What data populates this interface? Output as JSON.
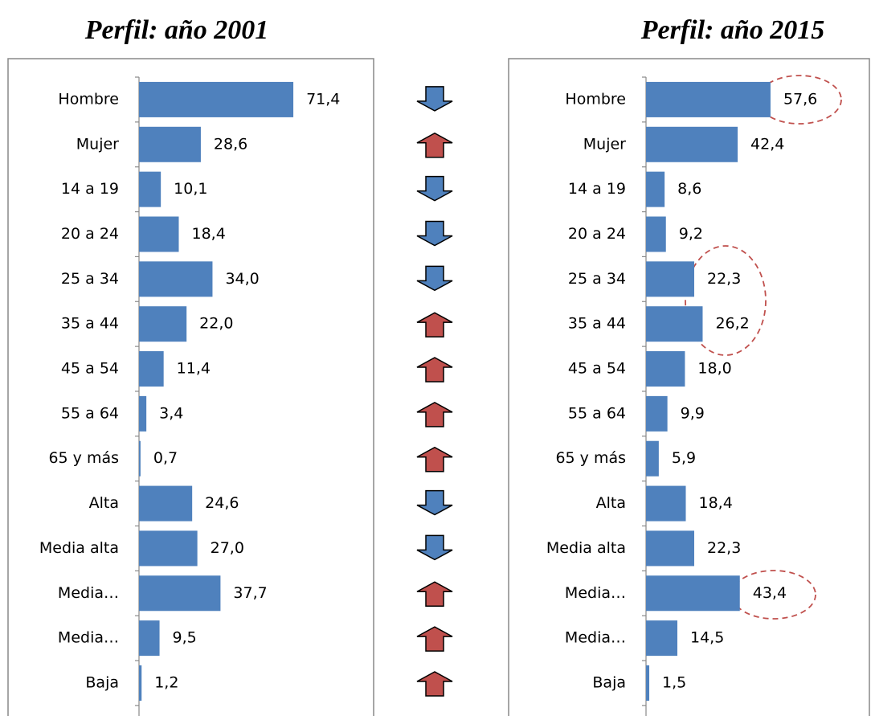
{
  "chart_data": [
    {
      "type": "bar",
      "title": "Perfil: año 2001",
      "categories": [
        "Hombre",
        "Mujer",
        "14 a 19",
        "20 a 24",
        "25 a 34",
        "35 a 44",
        "45 a 54",
        "55 a 64",
        "65 y más",
        "Alta",
        "Media alta",
        "Media…",
        "Media…",
        "Baja"
      ],
      "values": [
        71.4,
        28.6,
        10.1,
        18.4,
        34.0,
        22.0,
        11.4,
        3.4,
        0.7,
        24.6,
        27.0,
        37.7,
        9.5,
        1.2
      ],
      "value_labels": [
        "71,4",
        "28,6",
        "10,1",
        "18,4",
        "34,0",
        "22,0",
        "11,4",
        "3,4",
        "0,7",
        "24,6",
        "27,0",
        "37,7",
        "9,5",
        "1,2"
      ],
      "color": "#4f81bd"
    },
    {
      "type": "bar",
      "title": "Perfil: año 2015",
      "categories": [
        "Hombre",
        "Mujer",
        "14 a 19",
        "20 a 24",
        "25 a 34",
        "35 a 44",
        "45 a 54",
        "55 a 64",
        "65 y más",
        "Alta",
        "Media alta",
        "Media…",
        "Media…",
        "Baja"
      ],
      "values": [
        57.6,
        42.4,
        8.6,
        9.2,
        22.3,
        26.2,
        18.0,
        9.9,
        5.9,
        18.4,
        22.3,
        43.4,
        14.5,
        1.5
      ],
      "value_labels": [
        "57,6",
        "42,4",
        "8,6",
        "9,2",
        "22,3",
        "26,2",
        "18,0",
        "9,9",
        "5,9",
        "18,4",
        "22,3",
        "43,4",
        "14,5",
        "1,5"
      ],
      "color": "#4f81bd"
    }
  ]
}
